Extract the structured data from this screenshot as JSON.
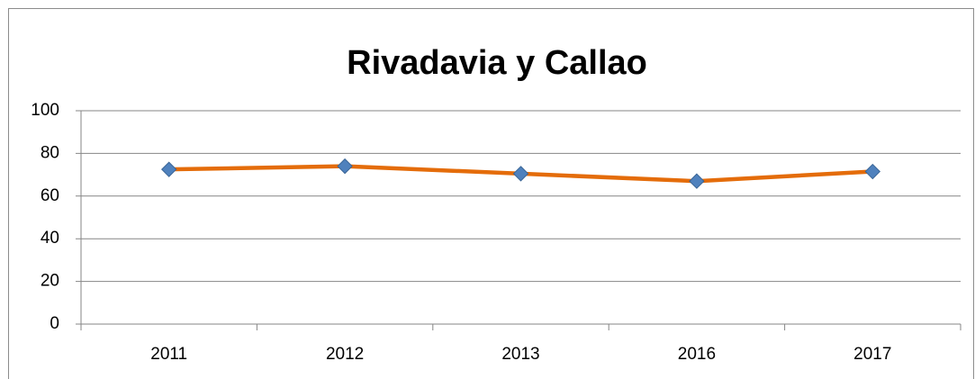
{
  "chart_data": {
    "type": "line",
    "title": "Rivadavia y Callao",
    "categories": [
      "2011",
      "2012",
      "2013",
      "2016",
      "2017"
    ],
    "values": [
      72.5,
      74,
      70.5,
      67,
      71.5
    ],
    "color": "#e46c0a",
    "marker_color": "#4f81bd",
    "ylim": [
      0,
      100
    ],
    "yticks": [
      0,
      20,
      40,
      60,
      80,
      100
    ],
    "grid": true
  }
}
